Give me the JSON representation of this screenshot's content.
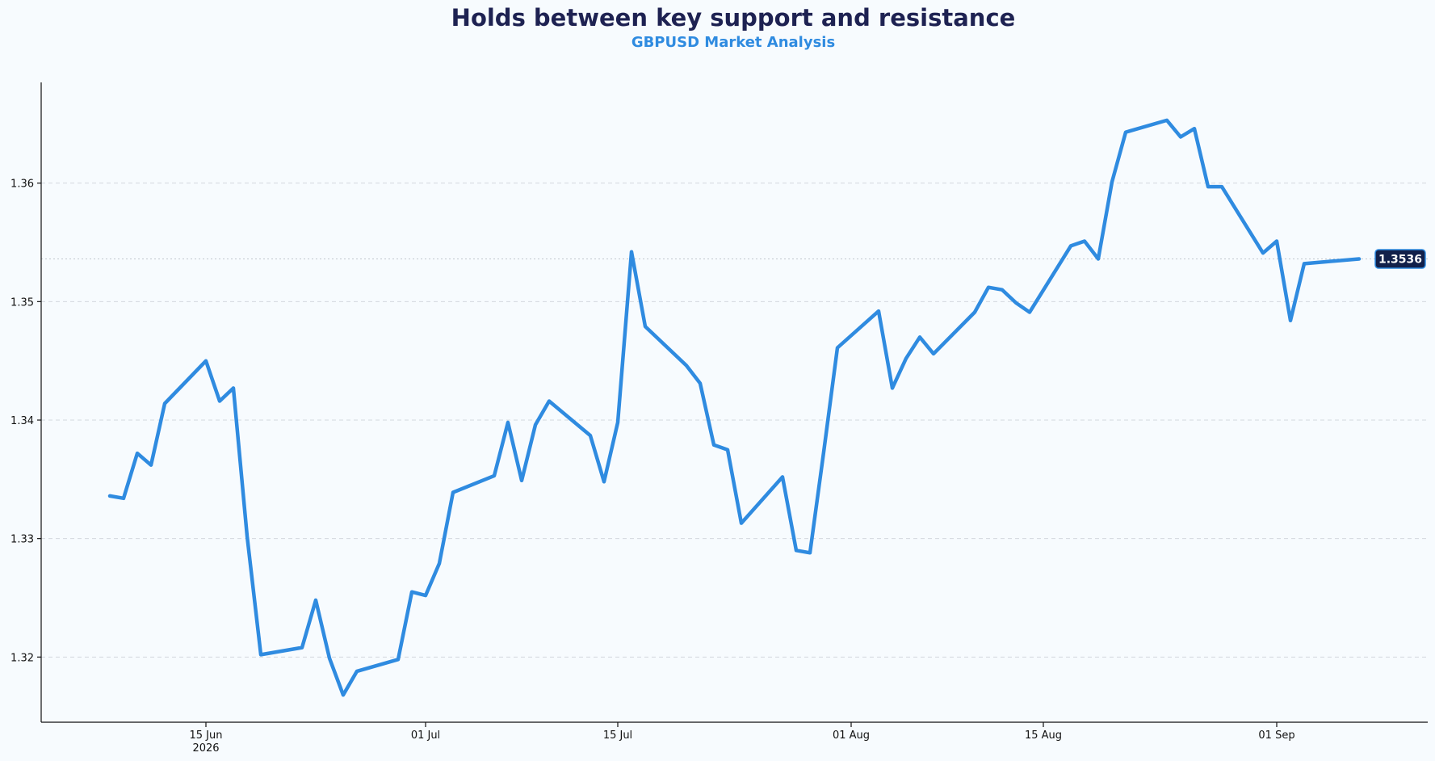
{
  "chart_data": {
    "type": "line",
    "title": "Holds between key support and resistance",
    "subtitle": "GBPUSD Market Analysis",
    "xlabel": "",
    "ylabel": "",
    "ylim": [
      1.3145,
      1.3685
    ],
    "xlim": [
      "2026-06-03",
      "2026-09-12"
    ],
    "grid": "horizontal dashed",
    "y_ticks": [
      {
        "value": 1.32,
        "label": "1.32"
      },
      {
        "value": 1.33,
        "label": "1.33"
      },
      {
        "value": 1.34,
        "label": "1.34"
      },
      {
        "value": 1.35,
        "label": "1.35"
      },
      {
        "value": 1.36,
        "label": "1.36"
      }
    ],
    "x_ticks": [
      {
        "date": "2026-06-15",
        "label": "15 Jun",
        "sublabel": "2026"
      },
      {
        "date": "2026-07-01",
        "label": "01 Jul",
        "sublabel": ""
      },
      {
        "date": "2026-07-15",
        "label": "15 Jul",
        "sublabel": ""
      },
      {
        "date": "2026-08-01",
        "label": "01 Aug",
        "sublabel": ""
      },
      {
        "date": "2026-08-15",
        "label": "15 Aug",
        "sublabel": ""
      },
      {
        "date": "2026-09-01",
        "label": "01 Sep",
        "sublabel": ""
      }
    ],
    "last_value": {
      "value": 1.3536,
      "label": "1.3536"
    },
    "colors": {
      "line": "#2f8be0",
      "badge": "#12204a",
      "title": "#1e2252",
      "subtitle": "#2f8be0"
    },
    "series": [
      {
        "x": [
          "2026-06-08",
          "2026-06-09",
          "2026-06-10",
          "2026-06-11",
          "2026-06-12",
          "2026-06-15",
          "2026-06-16",
          "2026-06-17",
          "2026-06-18",
          "2026-06-19",
          "2026-06-22",
          "2026-06-23",
          "2026-06-24",
          "2026-06-25",
          "2026-06-26",
          "2026-06-29",
          "2026-06-30",
          "2026-07-01",
          "2026-07-02",
          "2026-07-03",
          "2026-07-06",
          "2026-07-07",
          "2026-07-08",
          "2026-07-09",
          "2026-07-10",
          "2026-07-13",
          "2026-07-14",
          "2026-07-15",
          "2026-07-16",
          "2026-07-17",
          "2026-07-20",
          "2026-07-21",
          "2026-07-22",
          "2026-07-23",
          "2026-07-24",
          "2026-07-27",
          "2026-07-28",
          "2026-07-29",
          "2026-07-30",
          "2026-07-31",
          "2026-08-03",
          "2026-08-04",
          "2026-08-05",
          "2026-08-06",
          "2026-08-07",
          "2026-08-10",
          "2026-08-11",
          "2026-08-12",
          "2026-08-13",
          "2026-08-14",
          "2026-08-17",
          "2026-08-18",
          "2026-08-19",
          "2026-08-20",
          "2026-08-21",
          "2026-08-24",
          "2026-08-25",
          "2026-08-26",
          "2026-08-27",
          "2026-08-28",
          "2026-08-31",
          "2026-09-01",
          "2026-09-02",
          "2026-09-03",
          "2026-09-04",
          "2026-09-07"
        ],
        "values": [
          1.3336,
          1.3334,
          1.3372,
          1.3362,
          1.3414,
          1.345,
          1.3416,
          1.3427,
          1.3302,
          1.3202,
          1.3208,
          1.3248,
          1.3199,
          1.3168,
          1.3188,
          1.3198,
          1.3255,
          1.3252,
          1.3279,
          1.3339,
          1.3353,
          1.3398,
          1.3349,
          1.3396,
          1.3416,
          1.3387,
          1.3348,
          1.3398,
          1.3542,
          1.3479,
          1.3446,
          1.3431,
          1.3379,
          1.3375,
          1.3313,
          1.3352,
          1.329,
          1.3288,
          1.3373,
          1.3461,
          1.3492,
          1.3427,
          1.3452,
          1.347,
          1.3456,
          1.3491,
          1.3512,
          1.351,
          1.3499,
          1.3491,
          1.3547,
          1.3551,
          1.3536,
          1.3601,
          1.3643,
          1.3653,
          1.3639,
          1.3646,
          1.3597,
          1.3597,
          1.3541,
          1.3551,
          1.3484,
          1.3532,
          1.3533,
          1.3536
        ]
      }
    ]
  }
}
